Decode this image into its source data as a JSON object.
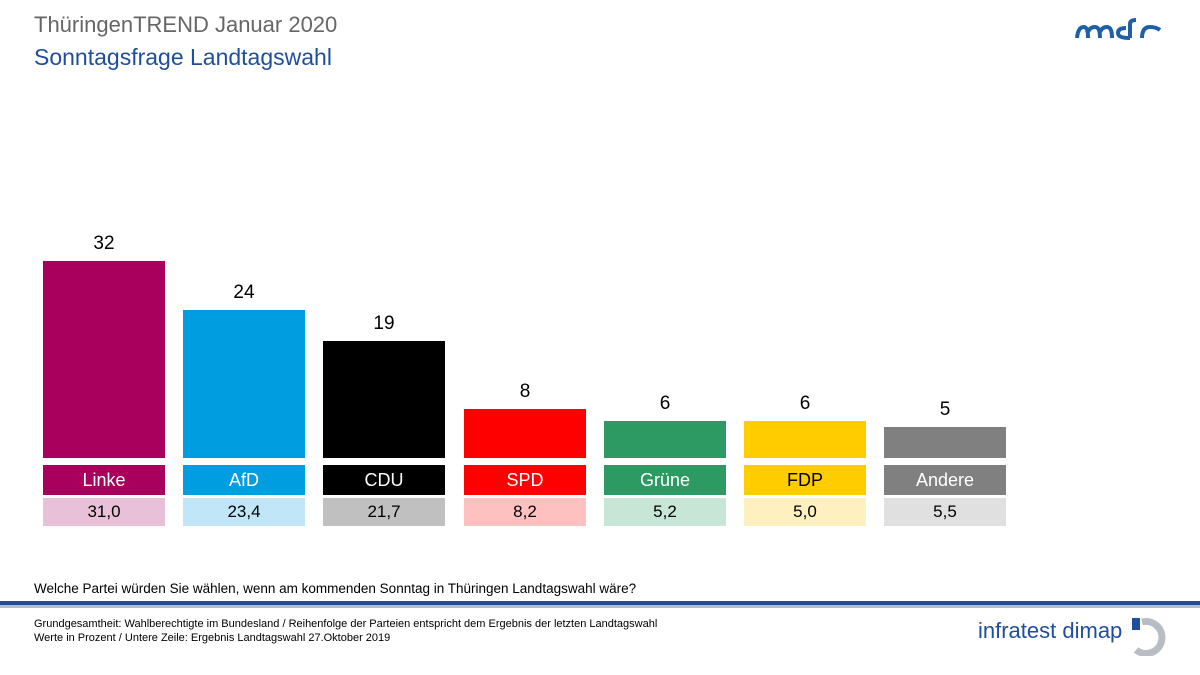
{
  "header": {
    "title": "ThüringenTREND Januar 2020",
    "subtitle": "Sonntagsfrage Landtagswahl",
    "logo": "mdr"
  },
  "chart_data": {
    "type": "bar",
    "title": "Sonntagsfrage Landtagswahl",
    "categories": [
      "Linke",
      "AfD",
      "CDU",
      "SPD",
      "Grüne",
      "FDP",
      "Andere"
    ],
    "series": [
      {
        "name": "ThüringenTREND Januar 2020",
        "values": [
          32,
          24,
          19,
          8,
          6,
          6,
          5
        ],
        "labels": [
          "32",
          "24",
          "19",
          "8",
          "6",
          "6",
          "5"
        ]
      },
      {
        "name": "Ergebnis Landtagswahl 27.Oktober 2019",
        "values": [
          31.0,
          23.4,
          21.7,
          8.2,
          5.2,
          5.0,
          5.5
        ],
        "labels": [
          "31,0",
          "23,4",
          "21,7",
          "8,2",
          "5,2",
          "5,0",
          "5,5"
        ]
      }
    ],
    "colors": [
      "#a8005c",
      "#009ee0",
      "#000000",
      "#ff0000",
      "#2e9a63",
      "#ffcc00",
      "#808080"
    ],
    "light_colors": [
      "#e8c0d8",
      "#c0e6f8",
      "#c0c0c0",
      "#ffc0c0",
      "#c8e6d6",
      "#fff0c0",
      "#e0e0e0"
    ],
    "label_text_colors": [
      "#ffffff",
      "#ffffff",
      "#ffffff",
      "#ffffff",
      "#ffffff",
      "#000000",
      "#ffffff"
    ],
    "ylim": [
      0,
      32
    ]
  },
  "footer": {
    "question": "Welche Partei würden Sie wählen, wenn am kommenden Sonntag in Thüringen Landtagswahl wäre?",
    "note1": "Grundgesamtheit: Wahlberechtigte im Bundesland  / Reihenfolge  der Parteien entspricht dem Ergebnis der letzten Landtagswahl",
    "note2": "Werte in Prozent / Untere Zeile: Ergebnis Landtagswahl  27.Oktober 2019",
    "brand": "infratest dimap"
  }
}
